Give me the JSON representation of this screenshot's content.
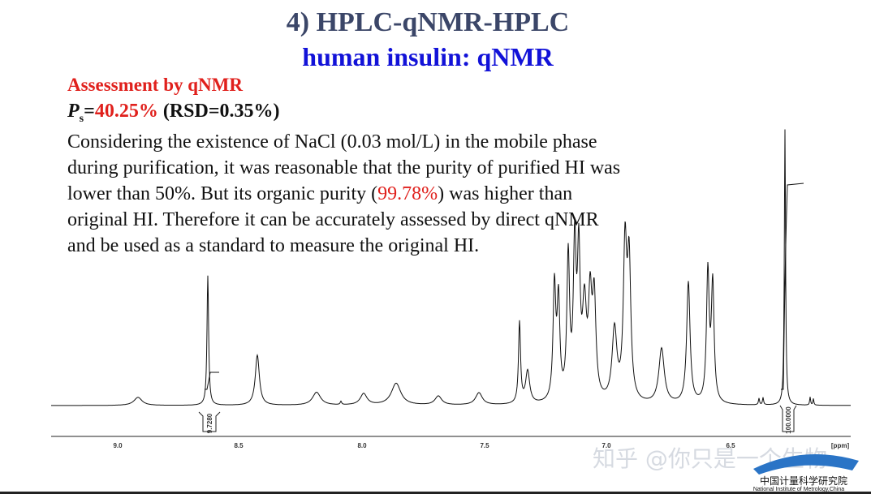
{
  "header": {
    "title": "4) HPLC-qNMR-HPLC",
    "subtitle": "human insulin: qNMR"
  },
  "assessment": {
    "heading": "Assessment by qNMR",
    "symbol": "P",
    "subscript": "s",
    "equals": "=",
    "purity": "40.25%",
    "rsd": " (RSD=0.35%)"
  },
  "paragraph": {
    "lines": [
      "Considering the existence of NaCl (0.03 mol/L) in the mobile phase",
      "during purification, it was reasonable that the purity of purified HI was",
      [
        "lower than 50%. But its organic purity (",
        "99.78%",
        ") was higher than"
      ],
      "original HI. Therefore it can be accurately assessed by direct qNMR",
      "and be used as a standard to measure the original HI."
    ]
  },
  "spectrum": {
    "axis_labels": [
      "9.0",
      "8.5",
      "8.0",
      "7.5",
      "7.0",
      "6.5",
      "[ppm]"
    ],
    "integrals": [
      "9.7280",
      "100.0000"
    ]
  },
  "watermark": "知乎 @你只是一个生物",
  "logo": {
    "name": "中国计量科学研究院",
    "english": "National Institute of Metrology,China"
  }
}
